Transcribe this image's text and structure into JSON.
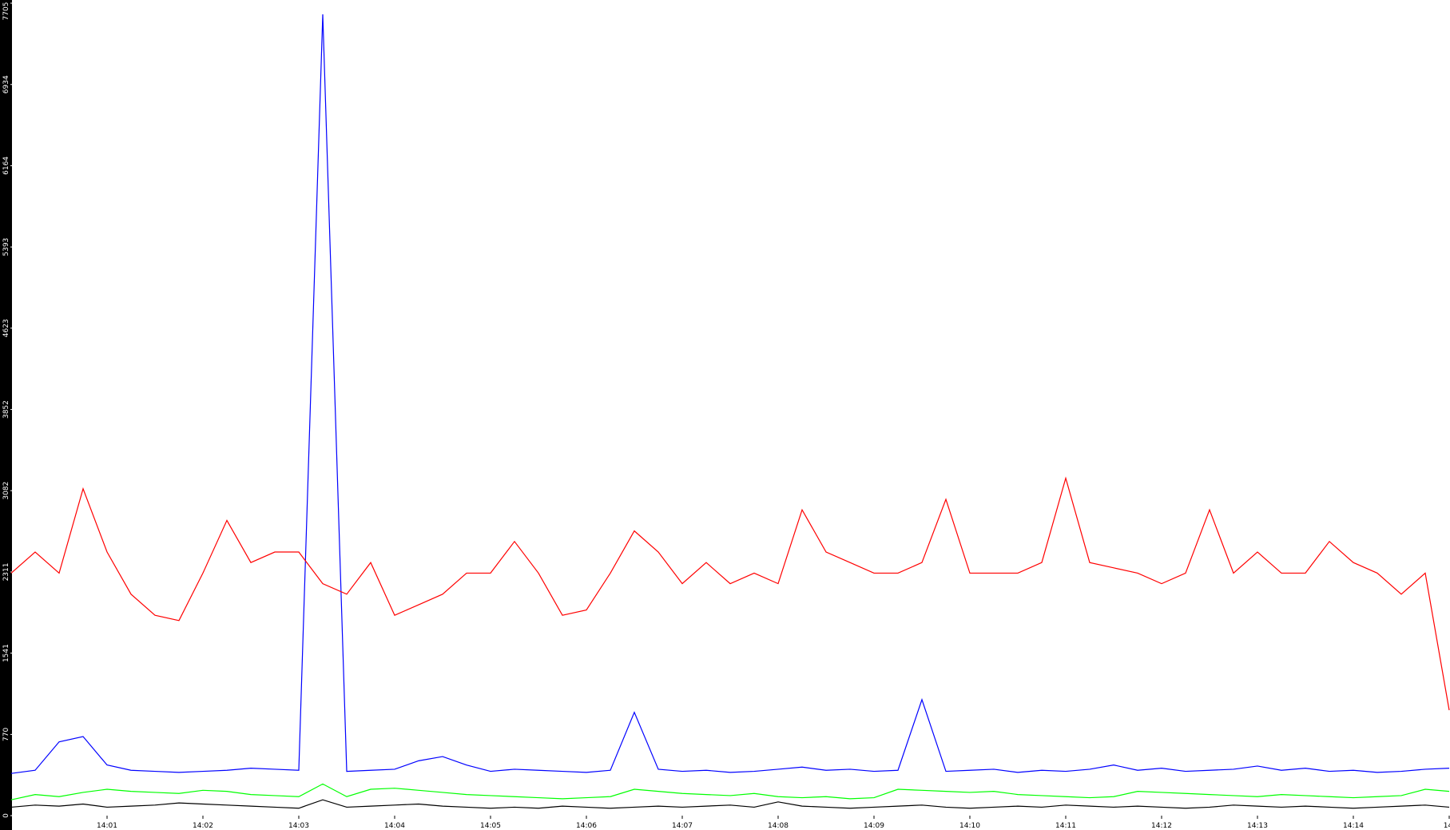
{
  "chart_data": {
    "type": "line",
    "xlim": [
      0,
      60
    ],
    "xticks": [
      {
        "value": 4,
        "label": "14:01"
      },
      {
        "value": 8,
        "label": "14:02"
      },
      {
        "value": 12,
        "label": "14:03"
      },
      {
        "value": 16,
        "label": "14:04"
      },
      {
        "value": 20,
        "label": "14:05"
      },
      {
        "value": 24,
        "label": "14:06"
      },
      {
        "value": 28,
        "label": "14:07"
      },
      {
        "value": 32,
        "label": "14:08"
      },
      {
        "value": 36,
        "label": "14:09"
      },
      {
        "value": 40,
        "label": "14:10"
      },
      {
        "value": 44,
        "label": "14:11"
      },
      {
        "value": 48,
        "label": "14:12"
      },
      {
        "value": 52,
        "label": "14:13"
      },
      {
        "value": 56,
        "label": "14:14"
      },
      {
        "value": 60,
        "label": "14:"
      }
    ],
    "ylim": [
      0,
      7705
    ],
    "yticks": [
      0,
      770,
      1541,
      2311,
      3082,
      3852,
      4623,
      5393,
      6164,
      6934,
      7705
    ],
    "grid": false,
    "series": [
      {
        "color": "#ff0000",
        "values": [
          2300,
          2500,
          2300,
          3100,
          2500,
          2100,
          1900,
          1850,
          2300,
          2800,
          2400,
          2500,
          2500,
          2200,
          2100,
          2400,
          1900,
          2000,
          2100,
          2300,
          2300,
          2600,
          2300,
          1900,
          1950,
          2300,
          2700,
          2500,
          2200,
          2400,
          2200,
          2300,
          2200,
          2900,
          2500,
          2400,
          2300,
          2300,
          2400,
          3000,
          2300,
          2300,
          2300,
          2400,
          3200,
          2400,
          2350,
          2300,
          2200,
          2300,
          2900,
          2300,
          2500,
          2300,
          2300,
          2600,
          2400,
          2300,
          2100,
          2300,
          1000
        ]
      },
      {
        "color": "#0000ff",
        "values": [
          400,
          430,
          700,
          750,
          480,
          430,
          420,
          410,
          420,
          430,
          450,
          440,
          430,
          7600,
          420,
          430,
          440,
          520,
          560,
          480,
          420,
          440,
          430,
          420,
          410,
          430,
          980,
          440,
          420,
          430,
          410,
          420,
          440,
          460,
          430,
          440,
          420,
          430,
          1100,
          420,
          430,
          440,
          410,
          430,
          420,
          440,
          480,
          430,
          450,
          420,
          430,
          440,
          470,
          430,
          450,
          420,
          430,
          410,
          420,
          440,
          450
        ]
      },
      {
        "color": "#00ff00",
        "values": [
          150,
          200,
          180,
          220,
          250,
          230,
          220,
          210,
          240,
          230,
          200,
          190,
          180,
          300,
          180,
          250,
          260,
          240,
          220,
          200,
          190,
          180,
          170,
          160,
          170,
          180,
          250,
          230,
          210,
          200,
          190,
          210,
          180,
          170,
          180,
          160,
          170,
          250,
          240,
          230,
          220,
          230,
          200,
          190,
          180,
          170,
          180,
          230,
          220,
          210,
          200,
          190,
          180,
          200,
          190,
          180,
          170,
          180,
          190,
          250,
          230
        ]
      },
      {
        "color": "#000000",
        "values": [
          80,
          100,
          90,
          110,
          80,
          90,
          100,
          120,
          110,
          100,
          90,
          80,
          70,
          150,
          80,
          90,
          100,
          110,
          90,
          80,
          70,
          80,
          70,
          90,
          80,
          70,
          80,
          90,
          80,
          90,
          100,
          80,
          130,
          90,
          80,
          70,
          80,
          90,
          100,
          80,
          70,
          80,
          90,
          80,
          100,
          90,
          80,
          90,
          80,
          70,
          80,
          100,
          90,
          80,
          90,
          80,
          70,
          80,
          90,
          100,
          80
        ]
      }
    ]
  }
}
